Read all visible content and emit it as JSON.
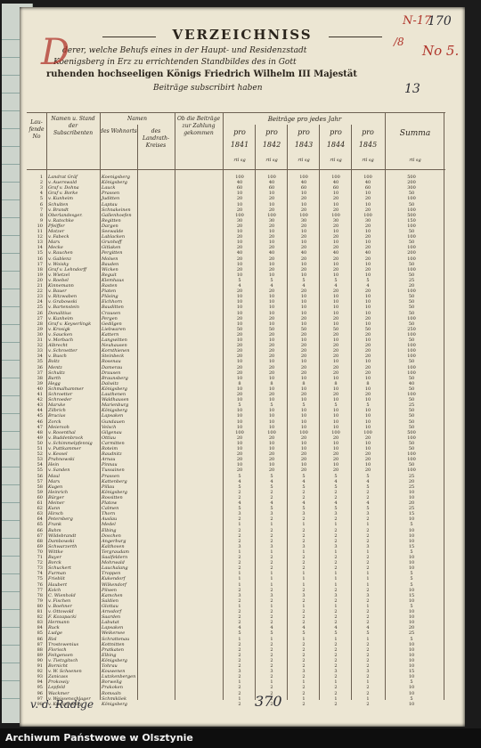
{
  "title": "VERZEICHNISS",
  "header_lines": [
    "derer, welche Behufs eines in der Haupt- und Residenzstadt",
    "Koenigsberg in Erz zu errichtenden Standbildes des in Gott",
    "ruhenden hochseeligen Königs Friedrich Wilhelm III Majestät",
    "Beiträge subscribirt haben"
  ],
  "annotations": {
    "red_top": "N-17",
    "red_no": "No 5.",
    "red_slash": "/8",
    "pencil_top": "170",
    "pencil_mid": "13",
    "pencil_foot": "370"
  },
  "columns": {
    "c1": "Lau- fende No",
    "c2": "Namen u. Stand der Subscribenten",
    "c3": "Namen",
    "c3a": "des Wohnorts",
    "c3b": "des Landrath-Kreises",
    "c4": "Ob die Beiträge zur Zahlung gekommen",
    "c5": "Beiträge pro jedes Jahr",
    "years": [
      "1841",
      "1842",
      "1843",
      "1844",
      "1845"
    ],
    "pro": "pro",
    "sum": "Summa",
    "units": "rtl sg"
  },
  "rows": [
    {
      "n": "1",
      "name": "Landrat Gräf",
      "place": "Koenigsberg",
      "v": [
        "100",
        "100",
        "100",
        "100",
        "100"
      ],
      "t": "500"
    },
    {
      "n": "2",
      "name": "v. Auerswald",
      "place": "Königsberg",
      "v": [
        "40",
        "40",
        "40",
        "40",
        "40"
      ],
      "t": "200"
    },
    {
      "n": "3",
      "name": "Graf v. Dohna",
      "place": "Lauck",
      "v": [
        "60",
        "60",
        "60",
        "60",
        "60"
      ],
      "t": "300"
    },
    {
      "n": "4",
      "name": "Graf v. Borke",
      "place": "Prassen",
      "v": [
        "10",
        "10",
        "10",
        "10",
        "10"
      ],
      "t": "50"
    },
    {
      "n": "5",
      "name": "v. Kunheim",
      "place": "Juditten",
      "v": [
        "20",
        "20",
        "20",
        "20",
        "20"
      ],
      "t": "100"
    },
    {
      "n": "6",
      "name": "Schulten",
      "place": "Laptau",
      "v": [
        "10",
        "10",
        "10",
        "10",
        "10"
      ],
      "t": "50"
    },
    {
      "n": "7",
      "name": "v. Brandt",
      "place": "Schnakeinen",
      "v": [
        "20",
        "20",
        "20",
        "20",
        "20"
      ],
      "t": "100"
    },
    {
      "n": "8",
      "name": "Oberlandesger.",
      "place": "Gallenhoefen",
      "v": [
        "100",
        "100",
        "100",
        "100",
        "100"
      ],
      "t": "500"
    },
    {
      "n": "9",
      "name": "v. Ratschke",
      "place": "Regitten",
      "v": [
        "30",
        "30",
        "30",
        "30",
        "30"
      ],
      "t": "150"
    },
    {
      "n": "10",
      "name": "Pfeiffer",
      "place": "Dargen",
      "v": [
        "20",
        "20",
        "20",
        "20",
        "20"
      ],
      "t": "100"
    },
    {
      "n": "11",
      "name": "Motzer",
      "place": "Seewalde",
      "v": [
        "10",
        "10",
        "10",
        "10",
        "10"
      ],
      "t": "50"
    },
    {
      "n": "12",
      "name": "v. Fabeck",
      "place": "Lablacken",
      "v": [
        "20",
        "20",
        "20",
        "20",
        "20"
      ],
      "t": "100"
    },
    {
      "n": "13",
      "name": "Marx",
      "place": "Grunhoff",
      "v": [
        "10",
        "10",
        "10",
        "10",
        "10"
      ],
      "t": "50"
    },
    {
      "n": "14",
      "name": "Mecke",
      "place": "Gitlaken",
      "v": [
        "20",
        "20",
        "20",
        "20",
        "20"
      ],
      "t": "100"
    },
    {
      "n": "15",
      "name": "v. Rauchen",
      "place": "Pergitten",
      "v": [
        "40",
        "40",
        "40",
        "40",
        "40"
      ],
      "t": "200"
    },
    {
      "n": "16",
      "name": "v. Gablenz",
      "place": "Molsen",
      "v": [
        "20",
        "20",
        "20",
        "20",
        "20"
      ],
      "t": "100"
    },
    {
      "n": "17",
      "name": "v. Woisky",
      "place": "Bauden",
      "v": [
        "10",
        "10",
        "10",
        "10",
        "10"
      ],
      "t": "50"
    },
    {
      "n": "18",
      "name": "Graf v. Lehndorff",
      "place": "Wicken",
      "v": [
        "20",
        "20",
        "20",
        "20",
        "20"
      ],
      "t": "100"
    },
    {
      "n": "19",
      "name": "v. Wietzel",
      "place": "Reguit",
      "v": [
        "10",
        "10",
        "10",
        "10",
        "10"
      ],
      "t": "50"
    },
    {
      "n": "20",
      "name": "v. Roebel",
      "place": "Klemhaus",
      "v": [
        "5",
        "5",
        "5",
        "5",
        "5"
      ],
      "t": "25"
    },
    {
      "n": "21",
      "name": "Kinnemann",
      "place": "Rasten",
      "v": [
        "4",
        "4",
        "4",
        "4",
        "4"
      ],
      "t": "20"
    },
    {
      "n": "22",
      "name": "v. Bauer",
      "place": "Piaten",
      "v": [
        "20",
        "20",
        "20",
        "20",
        "20"
      ],
      "t": "100"
    },
    {
      "n": "23",
      "name": "v. Ritzwaben",
      "place": "Pläsing",
      "v": [
        "10",
        "10",
        "10",
        "10",
        "10"
      ],
      "t": "50"
    },
    {
      "n": "24",
      "name": "v. Grabowski",
      "place": "Eichhorn",
      "v": [
        "10",
        "10",
        "10",
        "10",
        "10"
      ],
      "t": "50"
    },
    {
      "n": "25",
      "name": "v. Bartenstein",
      "place": "Bauditten",
      "v": [
        "10",
        "10",
        "10",
        "10",
        "10"
      ],
      "t": "50"
    },
    {
      "n": "26",
      "name": "Donalitius",
      "place": "Crausen",
      "v": [
        "10",
        "10",
        "10",
        "10",
        "10"
      ],
      "t": "50"
    },
    {
      "n": "27",
      "name": "v. Kunheim",
      "place": "Pergen",
      "v": [
        "20",
        "20",
        "20",
        "20",
        "20"
      ],
      "t": "100"
    },
    {
      "n": "28",
      "name": "Graf v. Keyserlingk",
      "place": "Gedilgen",
      "v": [
        "10",
        "10",
        "10",
        "10",
        "10"
      ],
      "t": "50"
    },
    {
      "n": "29",
      "name": "v. Krosigk",
      "place": "Liebwaren",
      "v": [
        "50",
        "50",
        "50",
        "50",
        "50"
      ],
      "t": "250"
    },
    {
      "n": "30",
      "name": "v. Saucken",
      "place": "Kattern",
      "v": [
        "20",
        "20",
        "20",
        "20",
        "20"
      ],
      "t": "100"
    },
    {
      "n": "31",
      "name": "v. Morbach",
      "place": "Langwitten",
      "v": [
        "10",
        "10",
        "10",
        "10",
        "10"
      ],
      "t": "50"
    },
    {
      "n": "32",
      "name": "Albrecht",
      "place": "Neuhausen",
      "v": [
        "20",
        "20",
        "20",
        "20",
        "20"
      ],
      "t": "100"
    },
    {
      "n": "33",
      "name": "v. Schroetter",
      "place": "Kornthienen",
      "v": [
        "20",
        "20",
        "20",
        "20",
        "20"
      ],
      "t": "100"
    },
    {
      "n": "34",
      "name": "v. Busch",
      "place": "Steinbeck",
      "v": [
        "20",
        "20",
        "20",
        "20",
        "20"
      ],
      "t": "100"
    },
    {
      "n": "35",
      "name": "Boltz",
      "place": "Rosenau",
      "v": [
        "10",
        "10",
        "10",
        "10",
        "10"
      ],
      "t": "50"
    },
    {
      "n": "36",
      "name": "Mentz",
      "place": "Damerau",
      "v": [
        "20",
        "20",
        "20",
        "20",
        "20"
      ],
      "t": "100"
    },
    {
      "n": "37",
      "name": "Schultz",
      "place": "Drausen",
      "v": [
        "20",
        "20",
        "20",
        "20",
        "20"
      ],
      "t": "100"
    },
    {
      "n": "38",
      "name": "Barth",
      "place": "Braunsberg",
      "v": [
        "10",
        "10",
        "10",
        "10",
        "10"
      ],
      "t": "50"
    },
    {
      "n": "39",
      "name": "Hegg",
      "place": "Dalwitz",
      "v": [
        "8",
        "8",
        "8",
        "8",
        "8"
      ],
      "t": "40"
    },
    {
      "n": "40",
      "name": "Schmalhammer",
      "place": "Königsberg",
      "v": [
        "10",
        "10",
        "10",
        "10",
        "10"
      ],
      "t": "50"
    },
    {
      "n": "41",
      "name": "Schroetter",
      "place": "Lauthenen",
      "v": [
        "20",
        "20",
        "20",
        "20",
        "20"
      ],
      "t": "100"
    },
    {
      "n": "42",
      "name": "Schroeder",
      "place": "Waldhausen",
      "v": [
        "10",
        "10",
        "10",
        "10",
        "10"
      ],
      "t": "50"
    },
    {
      "n": "43",
      "name": "Marxke",
      "place": "Marienburg",
      "v": [
        "5",
        "5",
        "5",
        "5",
        "5"
      ],
      "t": "25"
    },
    {
      "n": "44",
      "name": "Zilbrich",
      "place": "Königsberg",
      "v": [
        "10",
        "10",
        "10",
        "10",
        "10"
      ],
      "t": "50"
    },
    {
      "n": "45",
      "name": "Brucius",
      "place": "Lapsaken",
      "v": [
        "10",
        "10",
        "10",
        "10",
        "10"
      ],
      "t": "50"
    },
    {
      "n": "46",
      "name": "Zorck",
      "place": "Gundauen",
      "v": [
        "10",
        "10",
        "10",
        "10",
        "10"
      ],
      "t": "50"
    },
    {
      "n": "47",
      "name": "Meiersoh",
      "place": "Velsch",
      "v": [
        "10",
        "10",
        "10",
        "10",
        "10"
      ],
      "t": "50"
    },
    {
      "n": "48",
      "name": "v. Rosenthal",
      "place": "Gilgenau",
      "v": [
        "100",
        "100",
        "100",
        "100",
        "100"
      ],
      "t": "500"
    },
    {
      "n": "49",
      "name": "v. Buddenbrock",
      "place": "Ottlau",
      "v": [
        "20",
        "20",
        "20",
        "20",
        "20"
      ],
      "t": "100"
    },
    {
      "n": "50",
      "name": "v. Schimmelpfennig",
      "place": "Carmitten",
      "v": [
        "10",
        "10",
        "10",
        "10",
        "10"
      ],
      "t": "50"
    },
    {
      "n": "51",
      "name": "v. Puttkammer",
      "place": "Roteim",
      "v": [
        "10",
        "10",
        "10",
        "10",
        "10"
      ],
      "t": "50"
    },
    {
      "n": "52",
      "name": "v. Kessel",
      "place": "Raudnitz",
      "v": [
        "20",
        "20",
        "20",
        "20",
        "20"
      ],
      "t": "100"
    },
    {
      "n": "53",
      "name": "Prahnowski",
      "place": "Arnau",
      "v": [
        "20",
        "20",
        "20",
        "20",
        "20"
      ],
      "t": "100"
    },
    {
      "n": "54",
      "name": "Hein",
      "place": "Pinnau",
      "v": [
        "10",
        "10",
        "10",
        "10",
        "10"
      ],
      "t": "50"
    },
    {
      "n": "55",
      "name": "v. Sanden",
      "place": "Tussainen",
      "v": [
        "20",
        "20",
        "20",
        "20",
        "20"
      ],
      "t": "100"
    },
    {
      "n": "56",
      "name": "Maul",
      "place": "Prassen",
      "v": [
        "5",
        "5",
        "5",
        "5",
        "5"
      ],
      "t": "25"
    },
    {
      "n": "57",
      "name": "Marx",
      "place": "Kattenberg",
      "v": [
        "4",
        "4",
        "4",
        "4",
        "4"
      ],
      "t": "20"
    },
    {
      "n": "58",
      "name": "Kugen",
      "place": "Pillau",
      "v": [
        "5",
        "5",
        "5",
        "5",
        "5"
      ],
      "t": "25"
    },
    {
      "n": "59",
      "name": "Heinrich",
      "place": "Königsberg",
      "v": [
        "2",
        "2",
        "2",
        "2",
        "2"
      ],
      "t": "10"
    },
    {
      "n": "60",
      "name": "Bürger",
      "place": "Rossitten",
      "v": [
        "2",
        "2",
        "2",
        "2",
        "2"
      ],
      "t": "10"
    },
    {
      "n": "61",
      "name": "Meiner",
      "place": "Platow",
      "v": [
        "4",
        "4",
        "4",
        "4",
        "4"
      ],
      "t": "20"
    },
    {
      "n": "62",
      "name": "Kunn",
      "place": "Calmen",
      "v": [
        "5",
        "5",
        "5",
        "5",
        "5"
      ],
      "t": "25"
    },
    {
      "n": "63",
      "name": "Hirsch",
      "place": "Thorn",
      "v": [
        "3",
        "3",
        "3",
        "3",
        "3"
      ],
      "t": "15"
    },
    {
      "n": "64",
      "name": "Petersberg",
      "place": "Auslau",
      "v": [
        "2",
        "2",
        "2",
        "2",
        "2"
      ],
      "t": "10"
    },
    {
      "n": "65",
      "name": "Frank",
      "place": "Medel",
      "v": [
        "1",
        "1",
        "1",
        "1",
        "1"
      ],
      "t": "5"
    },
    {
      "n": "66",
      "name": "Bahm",
      "place": "Elbing",
      "v": [
        "2",
        "2",
        "2",
        "2",
        "2"
      ],
      "t": "10"
    },
    {
      "n": "67",
      "name": "Wildebrandt",
      "place": "Doschen",
      "v": [
        "2",
        "2",
        "2",
        "2",
        "2"
      ],
      "t": "10"
    },
    {
      "n": "68",
      "name": "Dambowski",
      "place": "Angerburg",
      "v": [
        "2",
        "2",
        "2",
        "2",
        "2"
      ],
      "t": "10"
    },
    {
      "n": "69",
      "name": "Schwarzerth",
      "place": "Kalthoven",
      "v": [
        "3",
        "3",
        "3",
        "3",
        "3"
      ],
      "t": "15"
    },
    {
      "n": "70",
      "name": "Wittke",
      "place": "Tergraudam",
      "v": [
        "1",
        "1",
        "1",
        "1",
        "1"
      ],
      "t": "5"
    },
    {
      "n": "71",
      "name": "Bayer",
      "place": "Saalfeldern",
      "v": [
        "2",
        "2",
        "2",
        "2",
        "2"
      ],
      "t": "10"
    },
    {
      "n": "72",
      "name": "Borck",
      "place": "Mohrwald",
      "v": [
        "2",
        "2",
        "2",
        "2",
        "2"
      ],
      "t": "10"
    },
    {
      "n": "73",
      "name": "Schuckert",
      "place": "Lauchalang",
      "v": [
        "2",
        "2",
        "2",
        "2",
        "2"
      ],
      "t": "10"
    },
    {
      "n": "74",
      "name": "Furman",
      "place": "Troppen",
      "v": [
        "1",
        "1",
        "1",
        "1",
        "1"
      ],
      "t": "5"
    },
    {
      "n": "75",
      "name": "Frieblit",
      "place": "Kukendorf",
      "v": [
        "1",
        "1",
        "1",
        "1",
        "1"
      ],
      "t": "5"
    },
    {
      "n": "76",
      "name": "Haubert",
      "place": "Wilkendorf",
      "v": [
        "1",
        "1",
        "1",
        "1",
        "1"
      ],
      "t": "5"
    },
    {
      "n": "77",
      "name": "Kolch",
      "place": "Pilwen",
      "v": [
        "2",
        "2",
        "2",
        "2",
        "2"
      ],
      "t": "10"
    },
    {
      "n": "78",
      "name": "C. Wienhold",
      "place": "Kamchen",
      "v": [
        "3",
        "3",
        "3",
        "3",
        "3"
      ],
      "t": "15"
    },
    {
      "n": "79",
      "name": "v. Fischen",
      "place": "Saldien",
      "v": [
        "2",
        "2",
        "2",
        "2",
        "2"
      ],
      "t": "10"
    },
    {
      "n": "80",
      "name": "v. Boehner",
      "place": "Glottau",
      "v": [
        "1",
        "1",
        "1",
        "1",
        "1"
      ],
      "t": "5"
    },
    {
      "n": "81",
      "name": "v. Ottowold",
      "place": "Arnsdorf",
      "v": [
        "2",
        "2",
        "2",
        "2",
        "2"
      ],
      "t": "10"
    },
    {
      "n": "82",
      "name": "F. Kozapacki",
      "place": "Saarden",
      "v": [
        "2",
        "2",
        "2",
        "2",
        "2"
      ],
      "t": "10"
    },
    {
      "n": "83",
      "name": "Hermann",
      "place": "Labutat",
      "v": [
        "2",
        "2",
        "2",
        "2",
        "2"
      ],
      "t": "10"
    },
    {
      "n": "84",
      "name": "Ruck",
      "place": "Lapsaken",
      "v": [
        "4",
        "4",
        "4",
        "4",
        "4"
      ],
      "t": "20"
    },
    {
      "n": "85",
      "name": "Ludge",
      "place": "Weikersee",
      "v": [
        "5",
        "5",
        "5",
        "5",
        "5"
      ],
      "t": "25"
    },
    {
      "n": "86",
      "name": "Risl",
      "place": "Schrattenau",
      "v": [
        "1",
        "1",
        "1",
        "1",
        "1"
      ],
      "t": "5"
    },
    {
      "n": "87",
      "name": "Trostowenius",
      "place": "Kottnitten",
      "v": [
        "2",
        "2",
        "2",
        "2",
        "2"
      ],
      "t": "10"
    },
    {
      "n": "88",
      "name": "Florisch",
      "place": "Pratkaten",
      "v": [
        "2",
        "2",
        "2",
        "2",
        "2"
      ],
      "t": "10"
    },
    {
      "n": "89",
      "name": "Feitgensen",
      "place": "Elbing",
      "v": [
        "2",
        "2",
        "2",
        "2",
        "2"
      ],
      "t": "10"
    },
    {
      "n": "90",
      "name": "v. Tietzgitsch",
      "place": "Königsberg",
      "v": [
        "2",
        "2",
        "2",
        "2",
        "2"
      ],
      "t": "10"
    },
    {
      "n": "91",
      "name": "Bornicht",
      "place": "Tohrau",
      "v": [
        "2",
        "2",
        "2",
        "2",
        "2"
      ],
      "t": "10"
    },
    {
      "n": "92",
      "name": "v. W. Schoenen",
      "place": "Kouwenen",
      "v": [
        "3",
        "3",
        "3",
        "3",
        "3"
      ],
      "t": "15"
    },
    {
      "n": "93",
      "name": "Zanicass",
      "place": "Lutzkenbergen",
      "v": [
        "2",
        "2",
        "2",
        "2",
        "2"
      ],
      "t": "10"
    },
    {
      "n": "94",
      "name": "Prokowiy",
      "place": "Borwelig",
      "v": [
        "1",
        "1",
        "1",
        "1",
        "1"
      ],
      "t": "5"
    },
    {
      "n": "95",
      "name": "Lepfeld",
      "place": "Prakoken",
      "v": [
        "2",
        "2",
        "2",
        "2",
        "2"
      ],
      "t": "10"
    },
    {
      "n": "96",
      "name": "Wackmer",
      "place": "Romsaln",
      "v": [
        "2",
        "2",
        "2",
        "2",
        "2"
      ],
      "t": "10"
    },
    {
      "n": "97",
      "name": "v. Weissenschlager",
      "place": "Schmikliek",
      "v": [
        "1",
        "1",
        "1",
        "1",
        "1"
      ],
      "t": "5"
    },
    {
      "n": "98",
      "name": "v. Kumptowsky",
      "place": "Königsberg",
      "v": [
        "2",
        "2",
        "2",
        "2",
        "2"
      ],
      "t": "10"
    }
  ],
  "signature": "v. d. Radige",
  "footer": "Archiwum Państwowe w Olsztynie",
  "colors": {
    "paper": "#ece6d3",
    "ink": "#2b251d",
    "red_ink": "#b0352b",
    "pencil": "#2c2c33",
    "footer_bg": "#0e0e0e"
  }
}
